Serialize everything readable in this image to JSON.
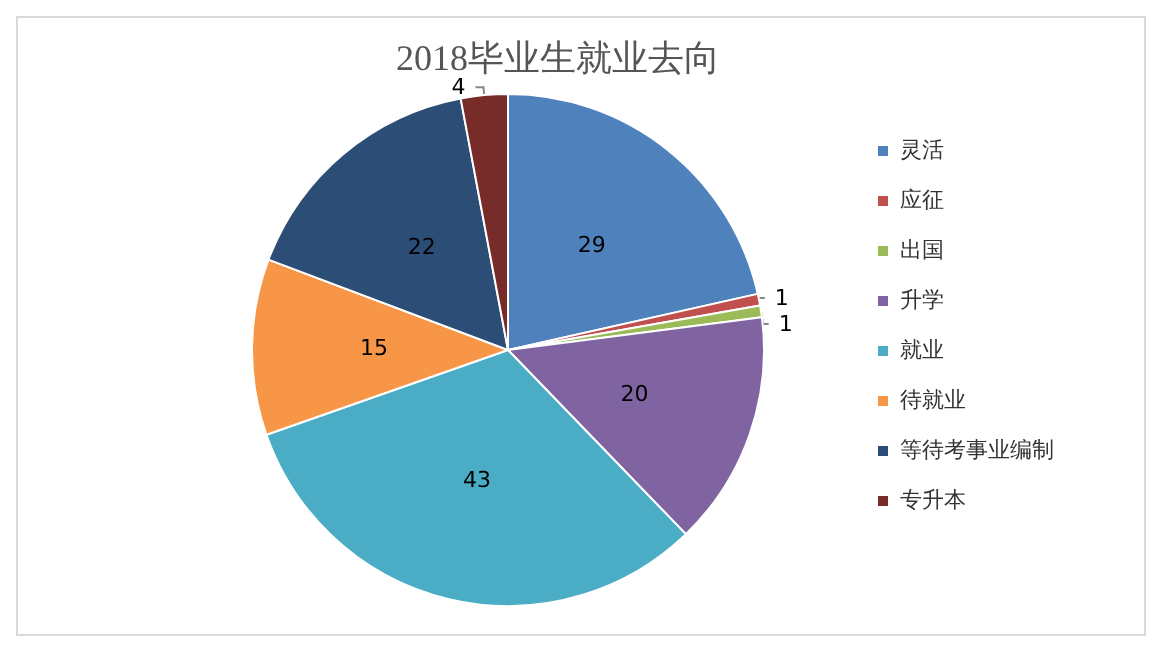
{
  "chart_data": {
    "type": "pie",
    "title": "2018毕业生就业去向",
    "categories": [
      "灵活",
      "应征",
      "出国",
      "升学",
      "就业",
      "待就业",
      "等待考事业编制",
      "专升本"
    ],
    "values": [
      29,
      1,
      1,
      20,
      43,
      15,
      22,
      4
    ],
    "colors": [
      "#4f81bd",
      "#c0504d",
      "#9bbb59",
      "#8064a2",
      "#4bacc6",
      "#f79646",
      "#2c4d75",
      "#772c2a"
    ],
    "data_labels": true,
    "legend": "right"
  }
}
